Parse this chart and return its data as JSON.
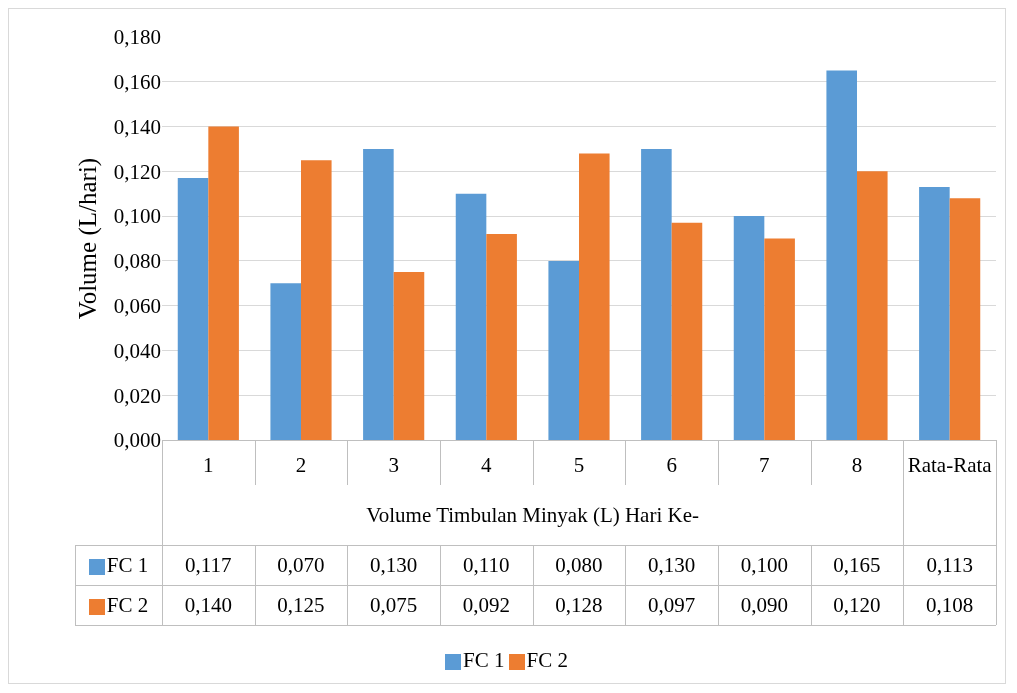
{
  "chart_data": {
    "type": "bar",
    "xlabel": "Volume Timbulan Minyak (L) Hari Ke-",
    "ylabel": "Volume (L/hari)",
    "categories": [
      "1",
      "2",
      "3",
      "4",
      "5",
      "6",
      "7",
      "8",
      "Rata-Rata"
    ],
    "series": [
      {
        "name": "FC 1",
        "color": "#5b9bd5",
        "values": [
          0.117,
          0.07,
          0.13,
          0.11,
          0.08,
          0.13,
          0.1,
          0.165,
          0.113
        ],
        "value_labels": [
          "0,117",
          "0,070",
          "0,130",
          "0,110",
          "0,080",
          "0,130",
          "0,100",
          "0,165",
          "0,113"
        ]
      },
      {
        "name": "FC 2",
        "color": "#ed7d31",
        "values": [
          0.14,
          0.125,
          0.075,
          0.092,
          0.128,
          0.097,
          0.09,
          0.12,
          0.108
        ],
        "value_labels": [
          "0,140",
          "0,125",
          "0,075",
          "0,092",
          "0,128",
          "0,097",
          "0,090",
          "0,120",
          "0,108"
        ]
      }
    ],
    "ylim": [
      0,
      0.18
    ],
    "yticks": [
      {
        "value": 0,
        "label": "0,000"
      },
      {
        "value": 0.02,
        "label": "0,020"
      },
      {
        "value": 0.04,
        "label": "0,040"
      },
      {
        "value": 0.06,
        "label": "0,060"
      },
      {
        "value": 0.08,
        "label": "0,080"
      },
      {
        "value": 0.1,
        "label": "0,100"
      },
      {
        "value": 0.12,
        "label": "0,120"
      },
      {
        "value": 0.14,
        "label": "0,140"
      },
      {
        "value": 0.16,
        "label": "0,160"
      },
      {
        "value": 0.18,
        "label": "0,180"
      }
    ],
    "grid": "y",
    "legend": "bottom",
    "data_labels": true
  }
}
